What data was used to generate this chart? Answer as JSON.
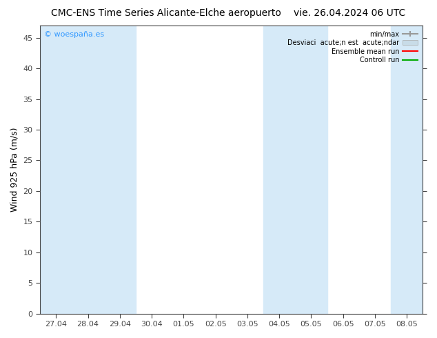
{
  "title_left": "CMC-ENS Time Series Alicante-Elche aeropuerto",
  "title_right": "vie. 26.04.2024 06 UTC",
  "ylabel": "Wind 925 hPa (m/s)",
  "watermark": "© woespaña.es",
  "ylim": [
    0,
    47
  ],
  "yticks": [
    0,
    5,
    10,
    15,
    20,
    25,
    30,
    35,
    40,
    45
  ],
  "xtick_labels": [
    "27.04",
    "28.04",
    "29.04",
    "30.04",
    "01.05",
    "02.05",
    "03.05",
    "04.05",
    "05.05",
    "06.05",
    "07.05",
    "08.05"
  ],
  "band_color": "#d6eaf8",
  "background_color": "#ffffff",
  "shaded_x_indices": [
    0,
    1,
    2,
    7,
    8,
    11
  ],
  "n_xpoints": 12,
  "fig_width": 6.34,
  "fig_height": 4.9,
  "dpi": 100,
  "legend_labels": [
    "min/max",
    "Desviaci  acute;n est  acute;ndar",
    "Ensemble mean run",
    "Controll run"
  ],
  "legend_colors": [
    "#999999",
    "#c8dce8",
    "#ff0000",
    "#00aa00"
  ],
  "title_fontsize": 10,
  "ylabel_fontsize": 9,
  "tick_fontsize": 8,
  "watermark_color": "#3399ff",
  "spine_color": "#444444",
  "tick_color": "#444444"
}
